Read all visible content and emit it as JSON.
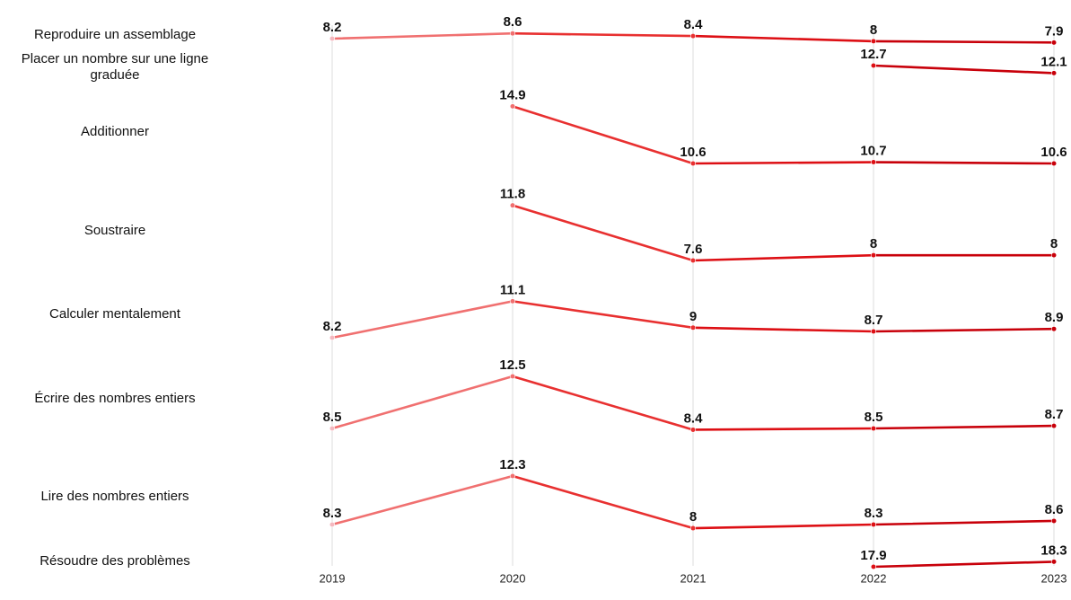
{
  "chart_data": {
    "type": "line",
    "title": "",
    "xlabel": "",
    "ylabel": "",
    "x": [
      "2019",
      "2020",
      "2021",
      "2022",
      "2023"
    ],
    "grid": "vertical",
    "legend": "none",
    "year_colors": {
      "2019": "#f4b8bf",
      "2020": "#f07070",
      "2021": "#e83030",
      "2022": "#dd0f14",
      "2023": "#c8000a"
    },
    "series": [
      {
        "name": "Reproduire un assemblage",
        "values": [
          8.2,
          8.6,
          8.4,
          8,
          7.9
        ],
        "labels": [
          "8.2",
          "8.6",
          "8.4",
          "8",
          "7.9"
        ]
      },
      {
        "name": "Placer un nombre sur une ligne graduée",
        "values": [
          null,
          null,
          null,
          12.7,
          12.1
        ],
        "labels": [
          "",
          "",
          "",
          "12.7",
          "12.1"
        ]
      },
      {
        "name": "Additionner",
        "values": [
          null,
          14.9,
          10.6,
          10.7,
          10.6
        ],
        "labels": [
          "",
          "14.9",
          "10.6",
          "10.7",
          "10.6"
        ]
      },
      {
        "name": "Soustraire",
        "values": [
          null,
          11.8,
          7.6,
          8,
          8
        ],
        "labels": [
          "",
          "11.8",
          "7.6",
          "8",
          "8"
        ]
      },
      {
        "name": "Calculer mentalement",
        "values": [
          8.2,
          11.1,
          9,
          8.7,
          8.9
        ],
        "labels": [
          "8.2",
          "11.1",
          "9",
          "8.7",
          "8.9"
        ]
      },
      {
        "name": "Écrire des nombres entiers",
        "values": [
          8.5,
          12.5,
          8.4,
          8.5,
          8.7
        ],
        "labels": [
          "8.5",
          "12.5",
          "8.4",
          "8.5",
          "8.7"
        ]
      },
      {
        "name": "Lire des nombres entiers",
        "values": [
          8.3,
          12.3,
          8,
          8.3,
          8.6
        ],
        "labels": [
          "8.3",
          "12.3",
          "8",
          "8.3",
          "8.6"
        ]
      },
      {
        "name": "Résoudre des problèmes",
        "values": [
          null,
          null,
          null,
          17.9,
          18.3
        ],
        "labels": [
          "",
          "",
          "",
          "17.9",
          "18.3"
        ]
      }
    ]
  }
}
